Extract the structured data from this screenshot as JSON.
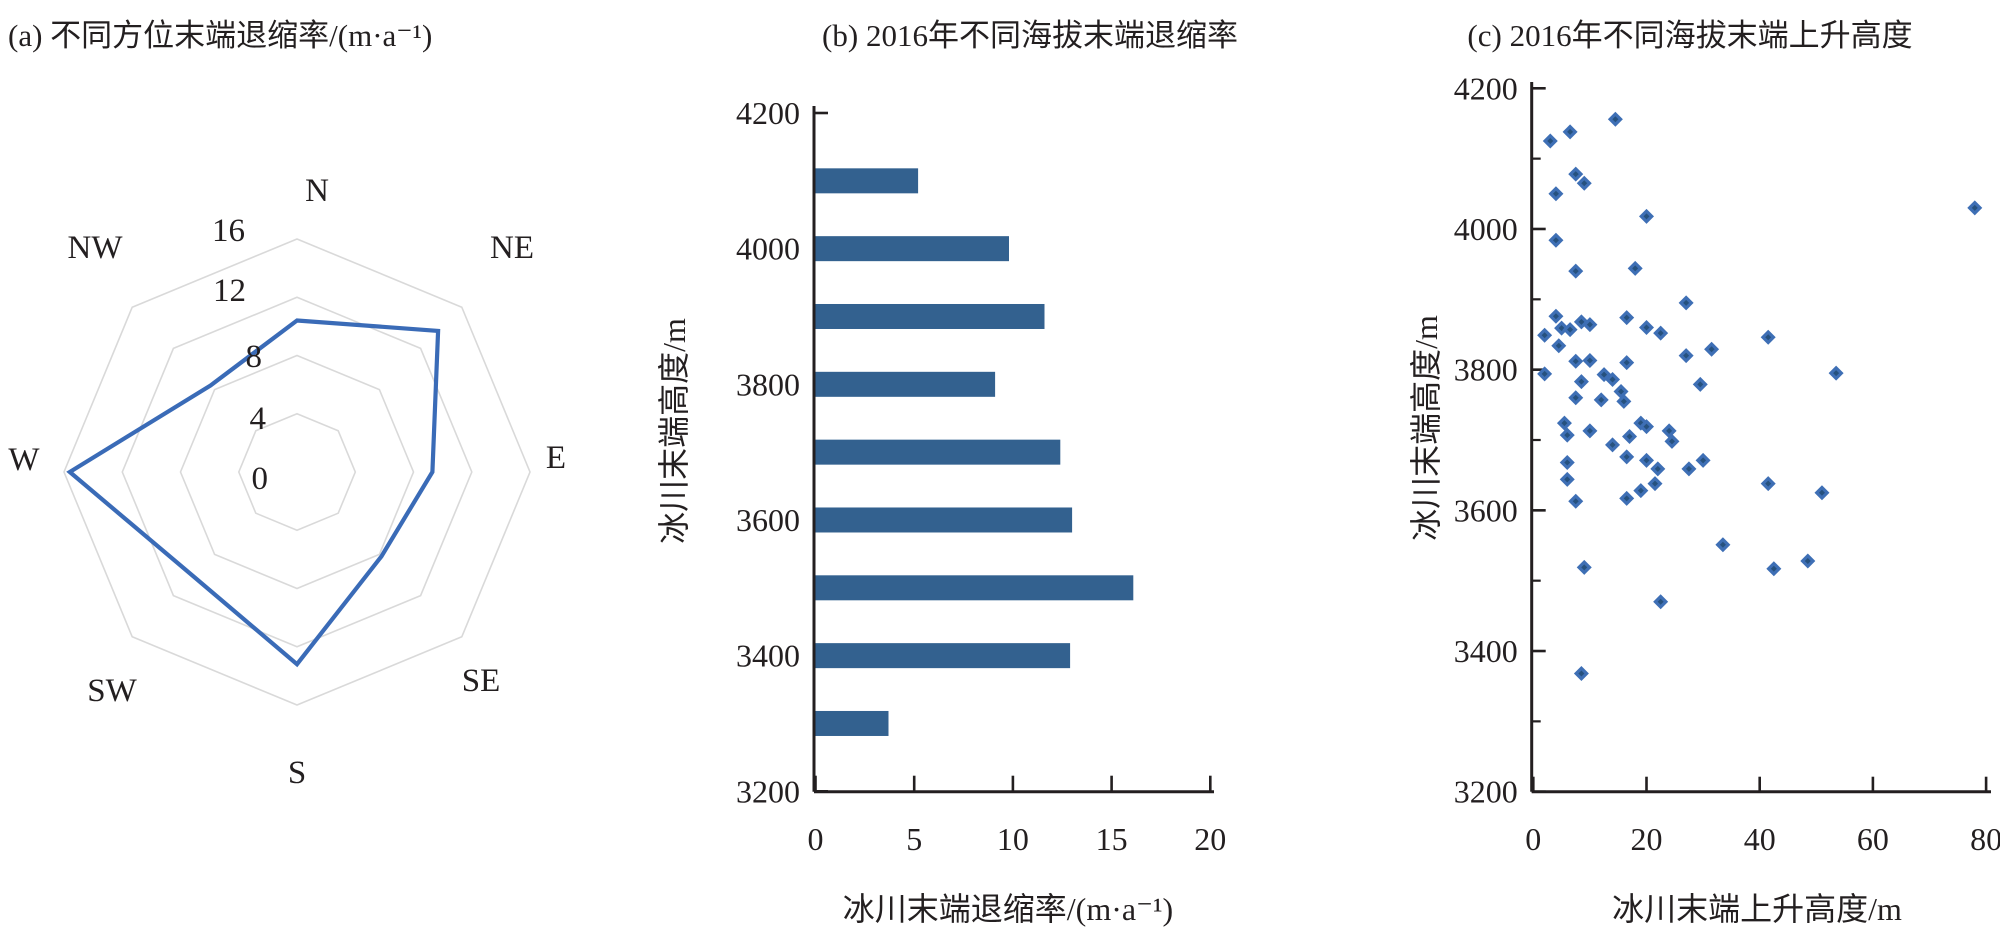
{
  "figure": {
    "background": "#ffffff"
  },
  "colors": {
    "radar_line": "#3a6bb7",
    "grid": "#d9d9d9",
    "bar": "#33618f",
    "marker": "#3e6fb5",
    "marker_core": "#26517e",
    "axis": "#231f20",
    "text": "#231f20"
  },
  "chart_data": [
    {
      "type": "radar",
      "title": "(a) 不同方位末端退缩率/(m·a⁻¹)",
      "categories": [
        "N",
        "NE",
        "E",
        "SE",
        "S",
        "SW",
        "W",
        "NW"
      ],
      "values": [
        10.4,
        13.7,
        9.3,
        8.2,
        13.2,
        10.1,
        15.6,
        8.4
      ],
      "rings": [
        4,
        8,
        12,
        16
      ],
      "ring_labels": [
        "16",
        "12",
        "8",
        "4",
        "0"
      ],
      "rlim": [
        0,
        16
      ],
      "grid": true,
      "legend": "none"
    },
    {
      "type": "bar",
      "orientation": "horizontal",
      "title": "(b) 2016年不同海拔末端退缩率",
      "xlabel": "冰川末端退缩率/(m·a⁻¹)",
      "ylabel": "冰川末端高度/m",
      "categories": [
        4100,
        4000,
        3900,
        3800,
        3700,
        3600,
        3500,
        3400,
        3300
      ],
      "values": [
        5.2,
        9.8,
        11.6,
        9.1,
        12.4,
        13.0,
        16.1,
        12.9,
        3.7
      ],
      "xticks": [
        0,
        5,
        10,
        15,
        20
      ],
      "ytick_labels": [
        4200,
        4000,
        3800,
        3600,
        3400,
        3200
      ],
      "ytick_minor_step": 100,
      "xlim": [
        0,
        20
      ],
      "ylim": [
        3200,
        4200
      ],
      "grid": false
    },
    {
      "type": "scatter",
      "title": "(c) 2016年不同海拔末端上升高度",
      "xlabel": "冰川末端上升高度/m",
      "ylabel": "冰川末端高度/m",
      "xticks": [
        0,
        20,
        40,
        60,
        80
      ],
      "ytick_labels": [
        4200,
        4000,
        3800,
        3600,
        3400,
        3200
      ],
      "ytick_minor_step": 100,
      "xlim": [
        0,
        82
      ],
      "ylim": [
        3200,
        4200
      ],
      "grid": false,
      "marker": "diamond",
      "points": [
        [
          14.5,
          4156
        ],
        [
          3,
          4125
        ],
        [
          6.5,
          4138
        ],
        [
          7.5,
          4078
        ],
        [
          9,
          4065
        ],
        [
          4,
          4050
        ],
        [
          20,
          4018
        ],
        [
          78,
          4030
        ],
        [
          4,
          3984
        ],
        [
          7.5,
          3940
        ],
        [
          18,
          3944
        ],
        [
          27,
          3895
        ],
        [
          4,
          3876
        ],
        [
          16.5,
          3874
        ],
        [
          20,
          3860
        ],
        [
          8.5,
          3868
        ],
        [
          5,
          3859
        ],
        [
          6.5,
          3857
        ],
        [
          10,
          3864
        ],
        [
          2,
          3849
        ],
        [
          22.5,
          3852
        ],
        [
          41.5,
          3846
        ],
        [
          4.5,
          3834
        ],
        [
          27,
          3820
        ],
        [
          31.5,
          3829
        ],
        [
          7.5,
          3812
        ],
        [
          10,
          3813
        ],
        [
          16.5,
          3810
        ],
        [
          2,
          3794
        ],
        [
          53.5,
          3795
        ],
        [
          8.5,
          3783
        ],
        [
          12.5,
          3793
        ],
        [
          14,
          3786
        ],
        [
          15.5,
          3769
        ],
        [
          29.5,
          3779
        ],
        [
          7.5,
          3760
        ],
        [
          12,
          3757
        ],
        [
          16,
          3755
        ],
        [
          5.5,
          3724
        ],
        [
          10,
          3713
        ],
        [
          19,
          3724
        ],
        [
          24,
          3713
        ],
        [
          17,
          3705
        ],
        [
          24.5,
          3698
        ],
        [
          14,
          3693
        ],
        [
          6,
          3707
        ],
        [
          20,
          3719
        ],
        [
          16.5,
          3676
        ],
        [
          20,
          3671
        ],
        [
          22,
          3659
        ],
        [
          27.5,
          3659
        ],
        [
          30,
          3671
        ],
        [
          6,
          3668
        ],
        [
          6,
          3644
        ],
        [
          7.5,
          3613
        ],
        [
          16.5,
          3617
        ],
        [
          19,
          3628
        ],
        [
          21.5,
          3638
        ],
        [
          9,
          3519
        ],
        [
          22.5,
          3470
        ],
        [
          33.5,
          3551
        ],
        [
          41.5,
          3638
        ],
        [
          42.5,
          3517
        ],
        [
          48.5,
          3528
        ],
        [
          51,
          3625
        ],
        [
          8.5,
          3368
        ]
      ]
    }
  ]
}
